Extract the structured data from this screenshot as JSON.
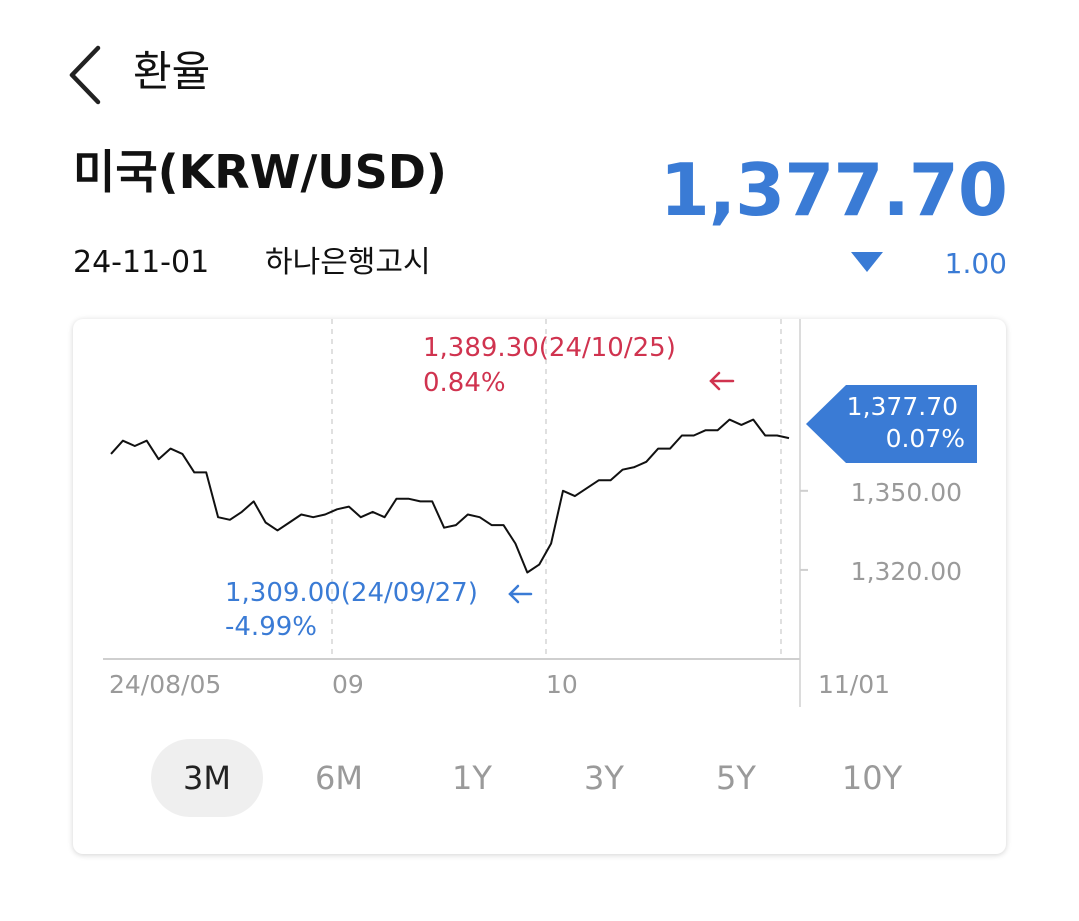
{
  "header": {
    "back_icon": "chevron-left-icon",
    "title": "환율"
  },
  "currency": {
    "name": "미국(KRW/USD)",
    "rate": "1,377.70",
    "date": "24-11-01",
    "source": "하나은행고시",
    "change_direction": "down",
    "change_value": "1.00",
    "colors": {
      "down": "#3a7bd5",
      "up": "#d0334f"
    }
  },
  "chart_data": {
    "type": "line",
    "x_ticks": [
      "24/08/05",
      "09",
      "10",
      "11/01"
    ],
    "y_ticks": [
      "1,350.00",
      "1,320.00"
    ],
    "ylim": [
      1290,
      1400
    ],
    "series": [
      {
        "values": [
          1364,
          1369,
          1367,
          1369,
          1362,
          1366,
          1364,
          1357,
          1357,
          1340,
          1339,
          1342,
          1346,
          1338,
          1335,
          1338,
          1341,
          1340,
          1341,
          1343,
          1344,
          1340,
          1342,
          1340,
          1347,
          1347,
          1346,
          1346,
          1336,
          1337,
          1341,
          1340,
          1337,
          1337,
          1330,
          1319,
          1322,
          1330,
          1350,
          1348,
          1351,
          1354,
          1354,
          1358,
          1359,
          1361,
          1366,
          1366,
          1371,
          1371,
          1373,
          1373,
          1377,
          1375,
          1377,
          1371,
          1371,
          1370
        ]
      }
    ],
    "max_annotation": {
      "label": "1,389.30(24/10/25)",
      "pct": "0.84%",
      "color": "#d0334f"
    },
    "min_annotation": {
      "label": "1,309.00(24/09/27)",
      "pct": "-4.99%",
      "color": "#3a7bd5"
    },
    "current_annotation": {
      "label": "1,377.70",
      "pct": "0.07%",
      "color": "#3a7bd5"
    },
    "grid": "vertical-dashed"
  },
  "tabs": [
    {
      "label": "3M",
      "active": true
    },
    {
      "label": "6M",
      "active": false
    },
    {
      "label": "1Y",
      "active": false
    },
    {
      "label": "3Y",
      "active": false
    },
    {
      "label": "5Y",
      "active": false
    },
    {
      "label": "10Y",
      "active": false
    }
  ]
}
